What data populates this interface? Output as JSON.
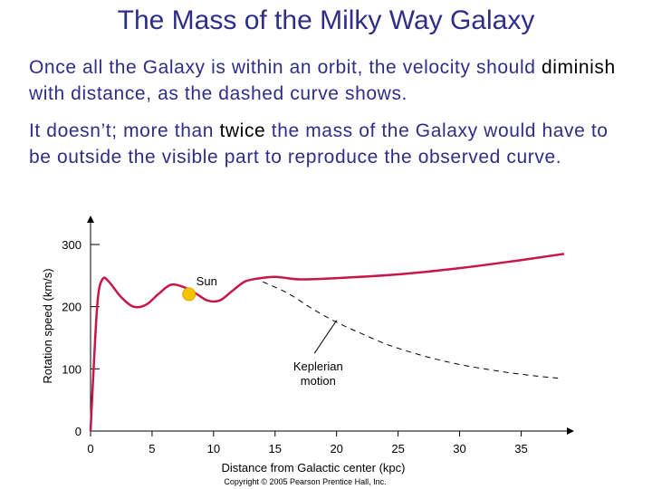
{
  "slide": {
    "title": "The Mass of the Milky Way Galaxy",
    "p1_a": "Once all the Galaxy is within an orbit, the velocity should ",
    "p1_em": "diminish",
    "p1_b": " with distance, as the dashed curve shows.",
    "p2_a": "It doesn’t; more than ",
    "p2_em": "twice",
    "p2_b": " the mass of the Galaxy would have to be outside the visible part to reproduce the observed curve."
  },
  "chart_data": {
    "type": "line",
    "title": "",
    "xlabel": "Distance from Galactic center (kpc)",
    "ylabel": "Rotation speed (km/s)",
    "xlim": [
      0,
      39
    ],
    "ylim": [
      0,
      330
    ],
    "x_ticks": [
      0,
      5,
      10,
      15,
      20,
      25,
      30,
      35
    ],
    "y_ticks": [
      0,
      100,
      200,
      300
    ],
    "series": [
      {
        "name": "observed",
        "style": "solid",
        "color": "#c8154a",
        "points": [
          [
            0,
            0
          ],
          [
            0.3,
            120
          ],
          [
            0.6,
            215
          ],
          [
            1.0,
            245
          ],
          [
            1.5,
            240
          ],
          [
            2.5,
            215
          ],
          [
            3.5,
            200
          ],
          [
            4.5,
            203
          ],
          [
            5.5,
            220
          ],
          [
            6.5,
            235
          ],
          [
            7.5,
            232
          ],
          [
            8.5,
            222
          ],
          [
            9.5,
            210
          ],
          [
            10.5,
            210
          ],
          [
            11.5,
            225
          ],
          [
            12.5,
            240
          ],
          [
            13.5,
            245
          ],
          [
            15,
            248
          ],
          [
            17,
            244
          ],
          [
            20,
            246
          ],
          [
            25,
            252
          ],
          [
            30,
            262
          ],
          [
            35,
            275
          ],
          [
            38.5,
            285
          ]
        ]
      },
      {
        "name": "Keplerian",
        "style": "dashed",
        "color": "#000000",
        "points": [
          [
            14,
            240
          ],
          [
            16,
            222
          ],
          [
            18,
            197
          ],
          [
            20,
            175
          ],
          [
            22,
            157
          ],
          [
            24,
            140
          ],
          [
            26,
            127
          ],
          [
            28,
            116
          ],
          [
            30,
            107
          ],
          [
            32,
            100
          ],
          [
            34,
            94
          ],
          [
            36,
            89
          ],
          [
            38,
            85
          ]
        ]
      }
    ],
    "sun": {
      "label": "Sun",
      "x": 8.0,
      "y": 220,
      "color": "#f5c400"
    },
    "annotations": [
      {
        "text_line1": "Keplerian",
        "text_line2": "motion"
      }
    ],
    "copyright": "Copyright © 2005 Pearson Prentice Hall, Inc."
  }
}
